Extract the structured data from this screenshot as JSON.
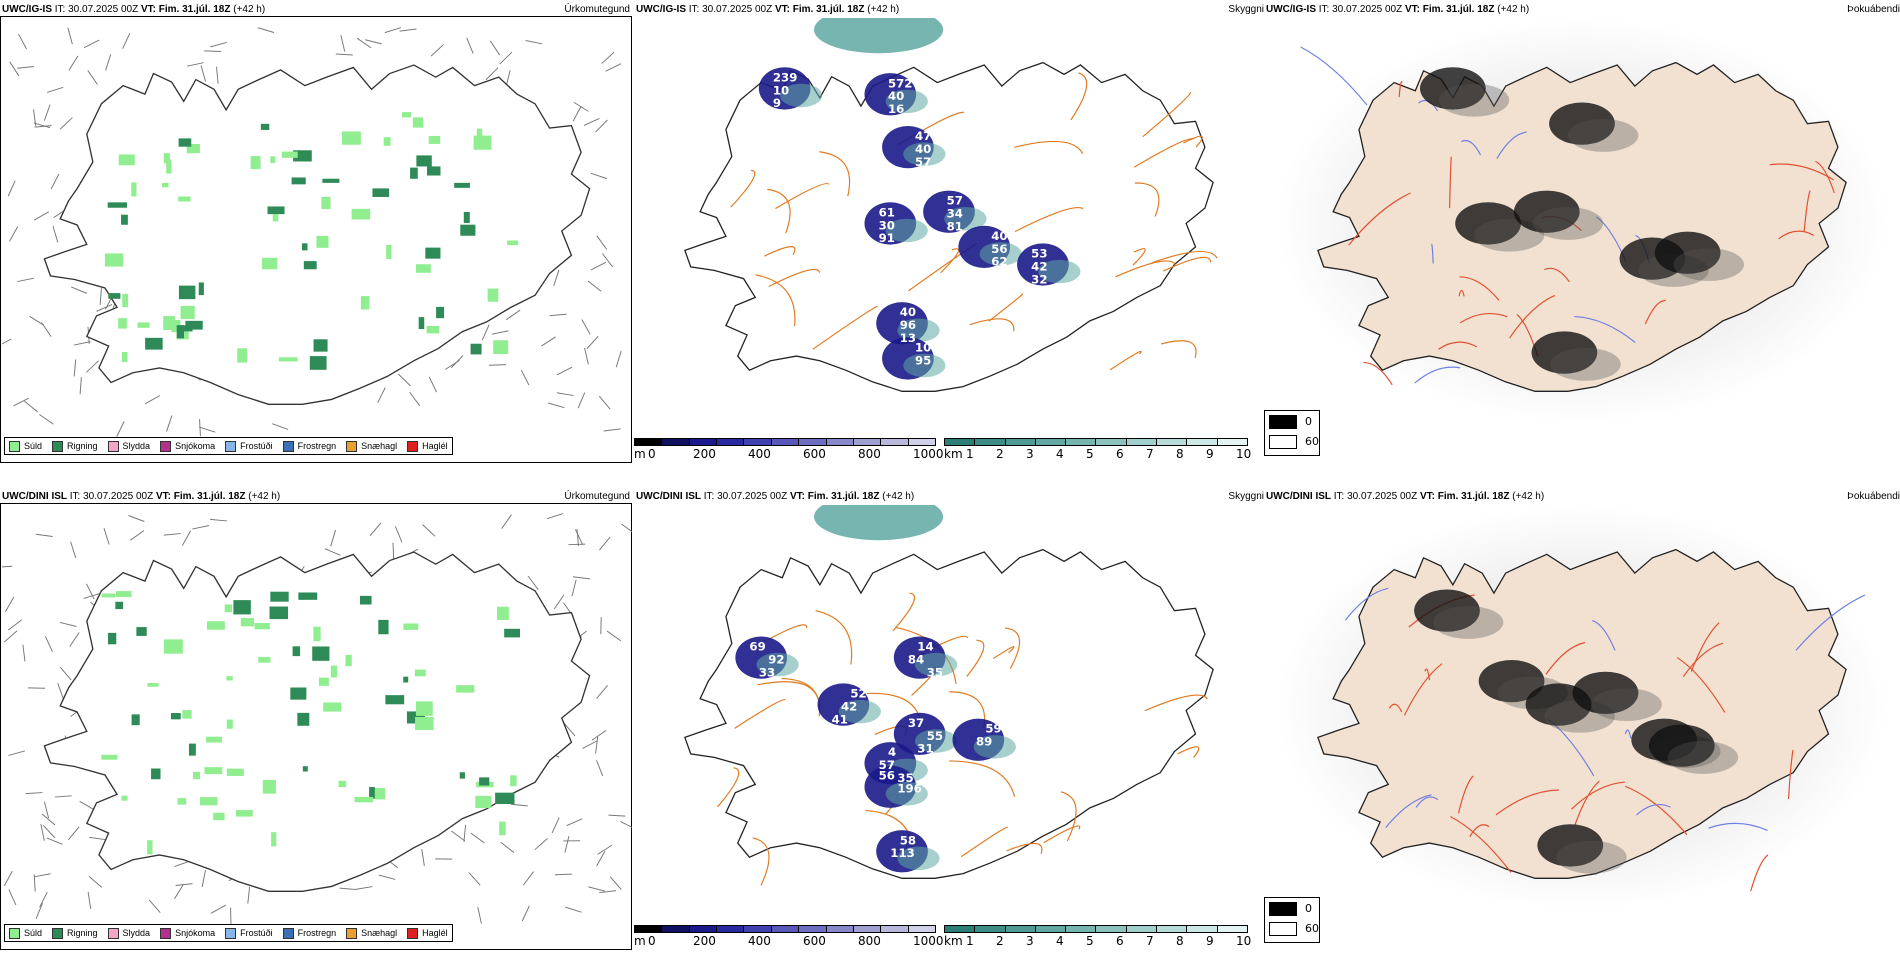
{
  "rows": [
    {
      "model": "UWC/IG-IS",
      "panels": [
        {
          "title": "Úrkomutegund"
        },
        {
          "title": "Skyggni",
          "labels": [
            "239",
            "572",
            "47",
            "61",
            "57",
            "40",
            "53",
            "40",
            "10",
            "10",
            "40",
            "40",
            "30",
            "34",
            "56",
            "42",
            "96",
            "95",
            "9",
            "16",
            "57",
            "91",
            "81",
            "62",
            "32",
            "13"
          ]
        },
        {
          "title": "Þokuábendi"
        }
      ]
    },
    {
      "model": "UWC/DINI ISL",
      "panels": [
        {
          "title": "Úrkomutegund"
        },
        {
          "title": "Skyggni",
          "labels": [
            "69",
            "14",
            "52",
            "37",
            "4",
            "59",
            "56",
            "58",
            "92",
            "84",
            "42",
            "55",
            "57",
            "89",
            "196",
            "113",
            "33",
            "35",
            "41",
            "31",
            "35"
          ]
        },
        {
          "title": "Þokuábendi"
        }
      ]
    }
  ],
  "header": {
    "it_label": "IT:",
    "it_value": "30.07.2025 00Z",
    "vt_label": "VT:",
    "vt_value": "Fim. 31.júl. 18Z",
    "offset": "(+42 h)"
  },
  "precip_legend": [
    {
      "label": "Súld",
      "color": "#90ee90"
    },
    {
      "label": "Rigning",
      "color": "#2e8b57"
    },
    {
      "label": "Slydda",
      "color": "#f4a6c8"
    },
    {
      "label": "Snjókoma",
      "color": "#b0328c"
    },
    {
      "label": "Frostúði",
      "color": "#87b5e8"
    },
    {
      "label": "Frostregn",
      "color": "#3c6fb4"
    },
    {
      "label": "Snæhagl",
      "color": "#e8a030"
    },
    {
      "label": "Haglél",
      "color": "#e02020"
    }
  ],
  "height_bar": {
    "unit": "m",
    "ticks": [
      "0",
      "200",
      "400",
      "600",
      "800",
      "1000"
    ],
    "colors": [
      "#000000",
      "#101060",
      "#1a1a8a",
      "#2a2aa0",
      "#4040b0",
      "#5858b8",
      "#6e6ec0",
      "#8888c8",
      "#a0a0d0",
      "#b8b8dc",
      "#d0d0e8"
    ]
  },
  "vis_bar": {
    "unit": "km",
    "ticks": [
      "1",
      "2",
      "3",
      "4",
      "5",
      "6",
      "7",
      "8",
      "9",
      "10"
    ],
    "colors": [
      "#2e7e78",
      "#3e8c86",
      "#509a94",
      "#62a7a2",
      "#76b4b0",
      "#8bc2be",
      "#a0cfcc",
      "#b6dcd9",
      "#cce8e6",
      "#e4f4f2"
    ]
  },
  "fog_legend": [
    {
      "value": "0",
      "color": "#000000"
    },
    {
      "value": "60",
      "color": "#ffffff"
    }
  ]
}
